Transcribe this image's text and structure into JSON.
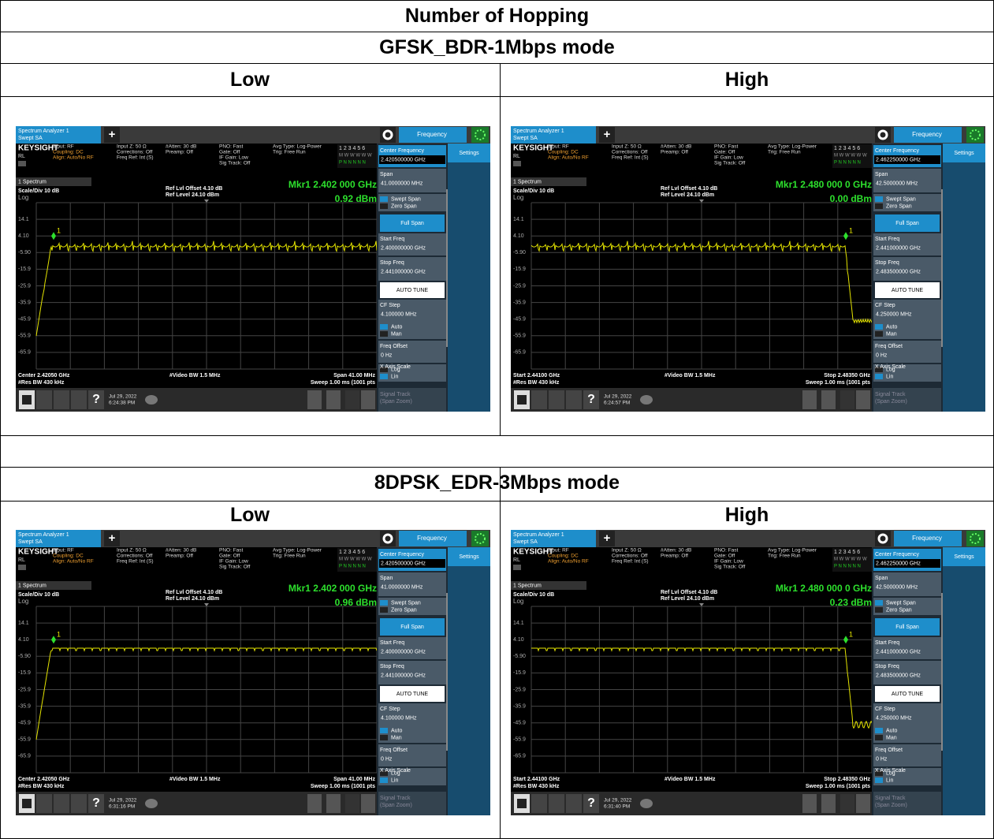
{
  "title": "Number of Hopping",
  "sections": [
    {
      "mode": "GFSK_BDR-1Mbps mode",
      "columns": [
        {
          "label": "Low",
          "screen": {
            "center_freq": "2.420500000 GHz",
            "span": "41.0000000 MHz",
            "start_freq": "2.400000000 GHz",
            "stop_freq": "2.441000000 GHz",
            "cf_step": "4.100000 MHz",
            "marker_freq": "Mkr1  2.402 000 GHz",
            "marker_level": "0.92 dBm",
            "x_left": "Center 2.42050 GHz",
            "x_right": "Span 41.00 MHz",
            "date": "Jul 29, 2022",
            "time": "6:24:38 PM"
          }
        },
        {
          "label": "High",
          "screen": {
            "center_freq": "2.462250000 GHz",
            "span": "42.5000000 MHz",
            "start_freq": "2.441000000 GHz",
            "stop_freq": "2.483500000 GHz",
            "cf_step": "4.250000 MHz",
            "marker_freq": "Mkr1  2.480 000 0 GHz",
            "marker_level": "0.00 dBm",
            "x_left": "Start 2.44100 GHz",
            "x_right": "Stop 2.48350 GHz",
            "date": "Jul 29, 2022",
            "time": "6:24:57 PM"
          }
        }
      ]
    },
    {
      "mode": "8DPSK_EDR-3Mbps mode",
      "columns": [
        {
          "label": "Low",
          "screen": {
            "center_freq": "2.420500000 GHz",
            "span": "41.0000000 MHz",
            "start_freq": "2.400000000 GHz",
            "stop_freq": "2.441000000 GHz",
            "cf_step": "4.100000 MHz",
            "marker_freq": "Mkr1  2.402 000 GHz",
            "marker_level": "0.96 dBm",
            "x_left": "Center 2.42050 GHz",
            "x_right": "Span 41.00 MHz",
            "date": "Jul 29, 2022",
            "time": "6:31:16 PM"
          }
        },
        {
          "label": "High",
          "screen": {
            "center_freq": "2.462250000 GHz",
            "span": "42.5000000 MHz",
            "start_freq": "2.441000000 GHz",
            "stop_freq": "2.483500000 GHz",
            "cf_step": "4.250000 MHz",
            "marker_freq": "Mkr1  2.480 000 0 GHz",
            "marker_level": "0.23 dBm",
            "x_left": "Start 2.44100 GHz",
            "x_right": "Stop 2.48350 GHz",
            "date": "Jul 29, 2022",
            "time": "6:31:40 PM"
          }
        }
      ]
    }
  ],
  "analyzer": {
    "tab_name": "Spectrum Analyzer 1",
    "tab_mode": "Swept SA",
    "add": "+",
    "menu_tab": "Frequency",
    "brand": "KEYSIGHT",
    "input": "Input: RF",
    "coupling": "Coupling: DC",
    "align": "Align: Auto/No RF",
    "rl": "RL",
    "input_z": "Input Z: 50 Ω",
    "corrections": "Corrections: Off",
    "freq_ref": "Freq Ref: Int (S)",
    "atten": "#Atten: 30 dB",
    "preamp": "Preamp: Off",
    "pno": "PNO: Fast",
    "gate": "Gate: Off",
    "if_gain": "IF Gain: Low",
    "sig_track": "Sig Track: Off",
    "avg_type": "Avg Type: Log-Power",
    "trig": "Trig: Free Run",
    "trace_row1": "1 2 3 4 5 6",
    "trace_row2": "M W W W W W",
    "trace_row3": "P N N N N N",
    "window": "1 Spectrum",
    "scale": "Scale/Div 10 dB",
    "log": "Log",
    "ref_offset": "Ref Lvl Offset 4.10 dB",
    "ref_level": "Ref Level 24.10 dBm",
    "y_labels": [
      "14.1",
      "4.10",
      "-5.90",
      "-15.9",
      "-25.9",
      "-35.9",
      "-45.9",
      "-55.9",
      "-65.9"
    ],
    "marker_id": "1",
    "video_bw": "#Video BW 1.5 MHz",
    "res_bw": "#Res BW 430 kHz",
    "sweep": "Sweep 1.00 ms (1001 pts",
    "help": "?",
    "menu": {
      "center": "Center Frequency",
      "span": "Span",
      "swept": "Swept Span",
      "zero": "Zero Span",
      "full": "Full Span",
      "start": "Start Freq",
      "stop": "Stop Freq",
      "auto_tune": "AUTO TUNE",
      "cf_step": "CF Step",
      "auto": "Auto",
      "man": "Man",
      "offset": "Freq Offset",
      "offset_value": "0 Hz",
      "x_scale": "X Axis Scale",
      "log": "Log",
      "lin": "Lin",
      "signal_track": "Signal Track",
      "span_zoom": "(Span Zoom)",
      "settings": "Settings"
    }
  }
}
